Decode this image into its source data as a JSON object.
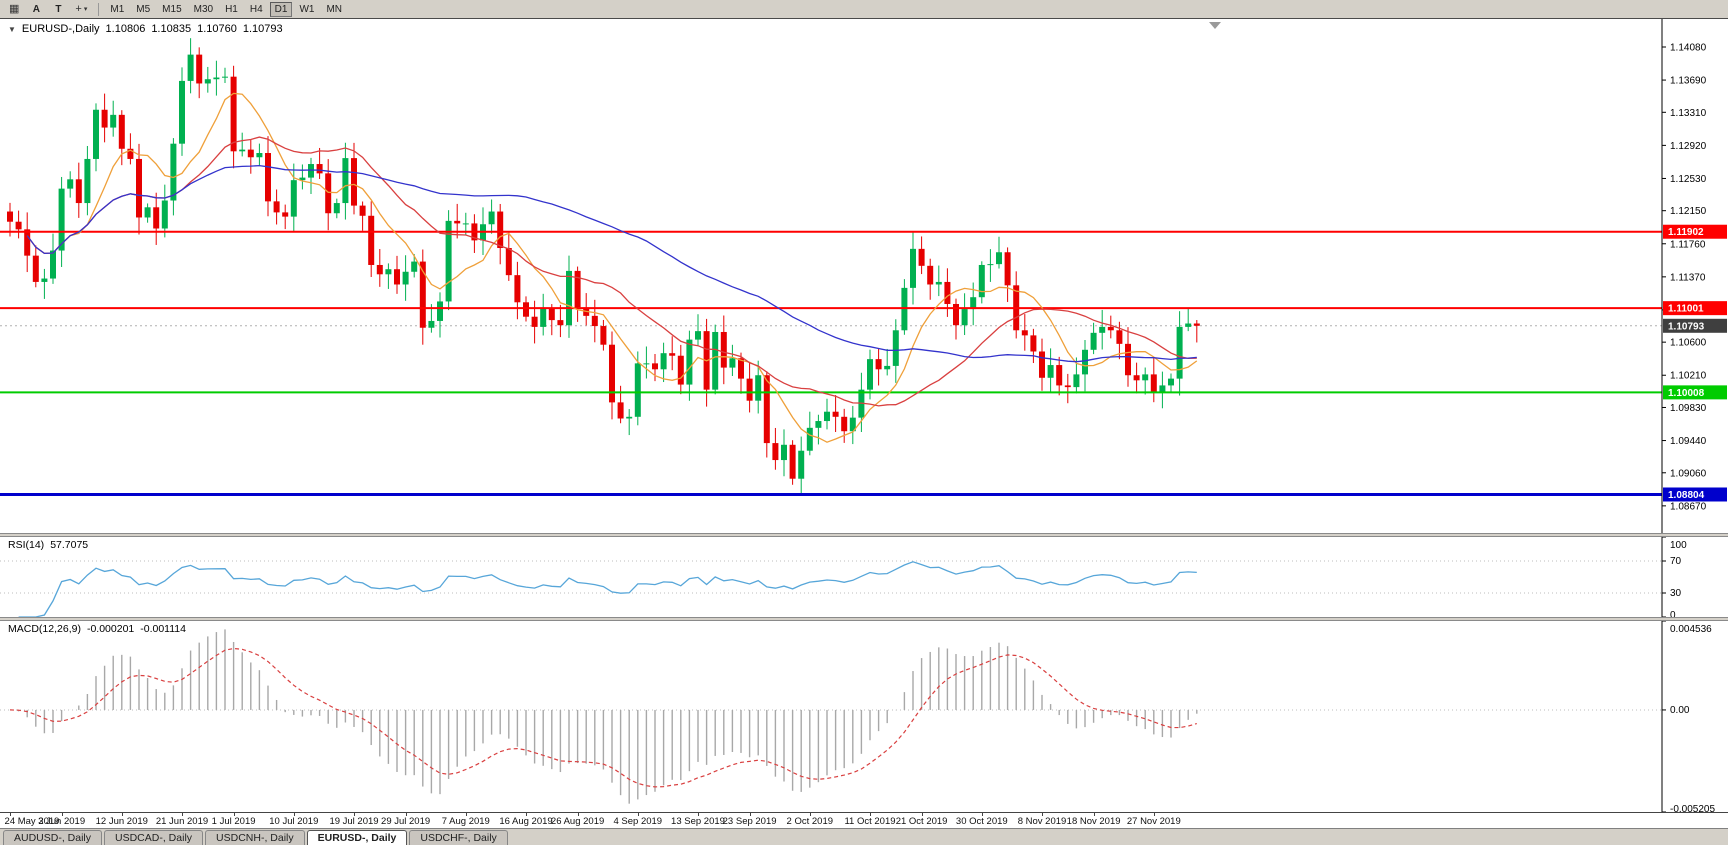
{
  "toolbar": {
    "chart_button_icon": "chart-grid-icon",
    "a_button": "A",
    "t_button": "T",
    "crosshair_icon": "crosshair-icon",
    "timeframes": [
      "M1",
      "M5",
      "M15",
      "M30",
      "H1",
      "H4",
      "D1",
      "W1",
      "MN"
    ],
    "active_timeframe": "D1"
  },
  "chart_header": {
    "symbol": "EURUSD-,Daily",
    "open": "1.10806",
    "high": "1.10835",
    "low": "1.10760",
    "close": "1.10793"
  },
  "rsi": {
    "label": "RSI(14)",
    "value": "57.7075",
    "levels": [
      70,
      30
    ],
    "axis_labels": [
      "100",
      "70",
      "30",
      "0"
    ],
    "color": "#57a6d9"
  },
  "macd": {
    "label": "MACD(12,26,9)",
    "macd_value": "-0.000201",
    "signal_value": "-0.001114",
    "axis_labels": [
      "0.004536",
      "0.00",
      "-0.005205"
    ],
    "histogram_color": "#a8a8a8",
    "signal_color": "#d94040"
  },
  "tabs": {
    "items": [
      {
        "label": "AUDUSD-, Daily",
        "active": false
      },
      {
        "label": "USDCAD-, Daily",
        "active": false
      },
      {
        "label": "USDCNH-, Daily",
        "active": false
      },
      {
        "label": "EURUSD-, Daily",
        "active": true
      },
      {
        "label": "USDCHF-, Daily",
        "active": false
      }
    ]
  },
  "chart_data": {
    "type": "candlestick",
    "symbol": "EURUSD-",
    "timeframe": "Daily",
    "up_color": "#00b050",
    "down_color": "#e60000",
    "price_range": {
      "min": 1.0835,
      "max": 1.1441
    },
    "current_price": 1.10793,
    "current_price_label": "1.10793",
    "current_tag_color": "#3f3f3f",
    "y_axis_labels": [
      "1.14080",
      "1.13690",
      "1.13310",
      "1.12920",
      "1.12530",
      "1.12150",
      "1.11760",
      "1.11370",
      "1.10980",
      "1.10600",
      "1.10210",
      "1.09830",
      "1.09440",
      "1.09060",
      "1.08670"
    ],
    "levels": [
      {
        "price": 1.11902,
        "label": "1.11902",
        "color": "#ff0000",
        "width": 2
      },
      {
        "price": 1.11001,
        "label": "1.11001",
        "color": "#ff0000",
        "width": 2
      },
      {
        "price": 1.10008,
        "label": "1.10008",
        "color": "#00cc00",
        "width": 2
      },
      {
        "price": 1.08804,
        "label": "1.08804",
        "color": "#0000cc",
        "width": 3
      }
    ],
    "moving_averages": [
      {
        "period": 8,
        "color": "#efa03a"
      },
      {
        "period": 21,
        "color": "#d94040"
      },
      {
        "period": 55,
        "color": "#3333cc"
      }
    ],
    "closes": [
      1.1202,
      1.1193,
      1.1162,
      1.1131,
      1.1135,
      1.1168,
      1.1241,
      1.1252,
      1.1224,
      1.1276,
      1.1334,
      1.1313,
      1.1328,
      1.1288,
      1.1276,
      1.1207,
      1.1219,
      1.1194,
      1.1227,
      1.1294,
      1.1368,
      1.1399,
      1.1365,
      1.137,
      1.1372,
      1.1373,
      1.1285,
      1.1287,
      1.1278,
      1.1283,
      1.1226,
      1.1213,
      1.1208,
      1.1251,
      1.1254,
      1.127,
      1.1259,
      1.1212,
      1.1224,
      1.1277,
      1.1221,
      1.1209,
      1.1151,
      1.114,
      1.1146,
      1.1128,
      1.1143,
      1.1155,
      1.1077,
      1.1085,
      1.1108,
      1.1203,
      1.12,
      1.12,
      1.118,
      1.1199,
      1.1214,
      1.1171,
      1.1139,
      1.1107,
      1.109,
      1.1078,
      1.11,
      1.1086,
      1.108,
      1.1144,
      1.1101,
      1.1091,
      1.1079,
      1.1057,
      1.0989,
      1.097,
      1.0972,
      1.1035,
      1.1035,
      1.1028,
      1.1047,
      1.1044,
      1.101,
      1.1063,
      1.1073,
      1.1004,
      1.1072,
      1.103,
      1.1041,
      1.1017,
      1.0991,
      1.1021,
      1.0941,
      1.0921,
      1.0939,
      1.0899,
      1.0932,
      1.0959,
      1.0967,
      1.0978,
      1.0972,
      1.0955,
      1.0971,
      1.1004,
      1.104,
      1.1028,
      1.1032,
      1.1074,
      1.1124,
      1.117,
      1.115,
      1.1128,
      1.1131,
      1.1105,
      1.108,
      1.1099,
      1.1113,
      1.1151,
      1.1152,
      1.1166,
      1.1127,
      1.1074,
      1.1068,
      1.1049,
      1.1018,
      1.1033,
      1.1009,
      1.1007,
      1.1022,
      1.1051,
      1.1071,
      1.1078,
      1.1074,
      1.1058,
      1.1021,
      1.1015,
      1.1022,
      1.1001,
      1.1009,
      1.1017,
      1.1078,
      1.1082,
      1.10793
    ],
    "x_labels": [
      {
        "text": "24 May 2019",
        "index": 0
      },
      {
        "text": "3 Jun 2019",
        "index": 6
      },
      {
        "text": "12 Jun 2019",
        "index": 13
      },
      {
        "text": "21 Jun 2019",
        "index": 20
      },
      {
        "text": "1 Jul 2019",
        "index": 26
      },
      {
        "text": "10 Jul 2019",
        "index": 33
      },
      {
        "text": "19 Jul 2019",
        "index": 40
      },
      {
        "text": "29 Jul 2019",
        "index": 46
      },
      {
        "text": "7 Aug 2019",
        "index": 53
      },
      {
        "text": "16 Aug 2019",
        "index": 60
      },
      {
        "text": "26 Aug 2019",
        "index": 66
      },
      {
        "text": "4 Sep 2019",
        "index": 73
      },
      {
        "text": "13 Sep 2019",
        "index": 80
      },
      {
        "text": "23 Sep 2019",
        "index": 86
      },
      {
        "text": "2 Oct 2019",
        "index": 93
      },
      {
        "text": "11 Oct 2019",
        "index": 100
      },
      {
        "text": "21 Oct 2019",
        "index": 106
      },
      {
        "text": "30 Oct 2019",
        "index": 113
      },
      {
        "text": "8 Nov 2019",
        "index": 120
      },
      {
        "text": "18 Nov 2019",
        "index": 126
      },
      {
        "text": "27 Nov 2019",
        "index": 133
      }
    ]
  }
}
